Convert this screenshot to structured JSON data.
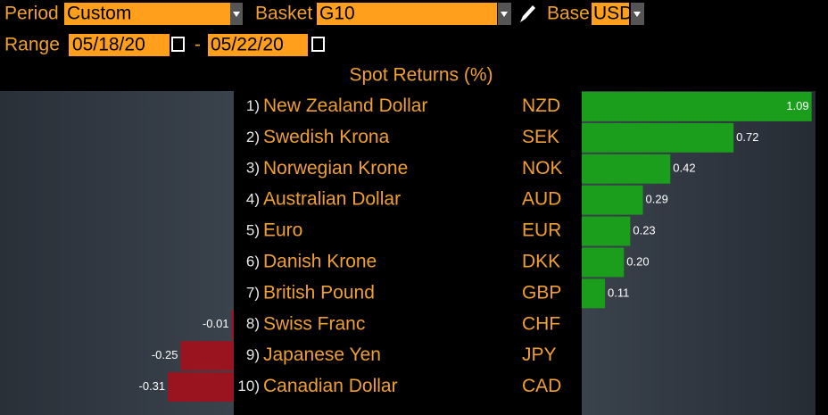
{
  "controls": {
    "period_label": "Period",
    "period": "Custom",
    "basket_label": "Basket",
    "basket": "G10",
    "base_label": "Base",
    "base": "USD",
    "range_label": "Range",
    "start": "05/18/20",
    "separator": "-",
    "end": "05/22/20"
  },
  "chart_data": {
    "type": "bar",
    "title": "Spot Returns (%)",
    "ranks": [
      "1)",
      "2)",
      "3)",
      "4)",
      "5)",
      "6)",
      "7)",
      "8)",
      "9)",
      "10)"
    ],
    "categories": [
      "New Zealand Dollar",
      "Swedish Krona",
      "Norwegian Krone",
      "Australian Dollar",
      "Euro",
      "Danish Krone",
      "British Pound",
      "Swiss Franc",
      "Japanese Yen",
      "Canadian Dollar"
    ],
    "codes": [
      "NZD",
      "SEK",
      "NOK",
      "AUD",
      "EUR",
      "DKK",
      "GBP",
      "CHF",
      "JPY",
      "CAD"
    ],
    "values": [
      1.09,
      0.72,
      0.42,
      0.29,
      0.23,
      0.2,
      0.11,
      -0.01,
      -0.25,
      -0.31
    ],
    "value_labels": [
      "1.09",
      "0.72",
      "0.42",
      "0.29",
      "0.23",
      "0.20",
      "0.11",
      "-0.01",
      "-0.25",
      "-0.31"
    ],
    "positive_color": "#1b9e1b",
    "negative_color": "#9a1420",
    "xlim": [
      -1.1,
      1.1
    ]
  }
}
